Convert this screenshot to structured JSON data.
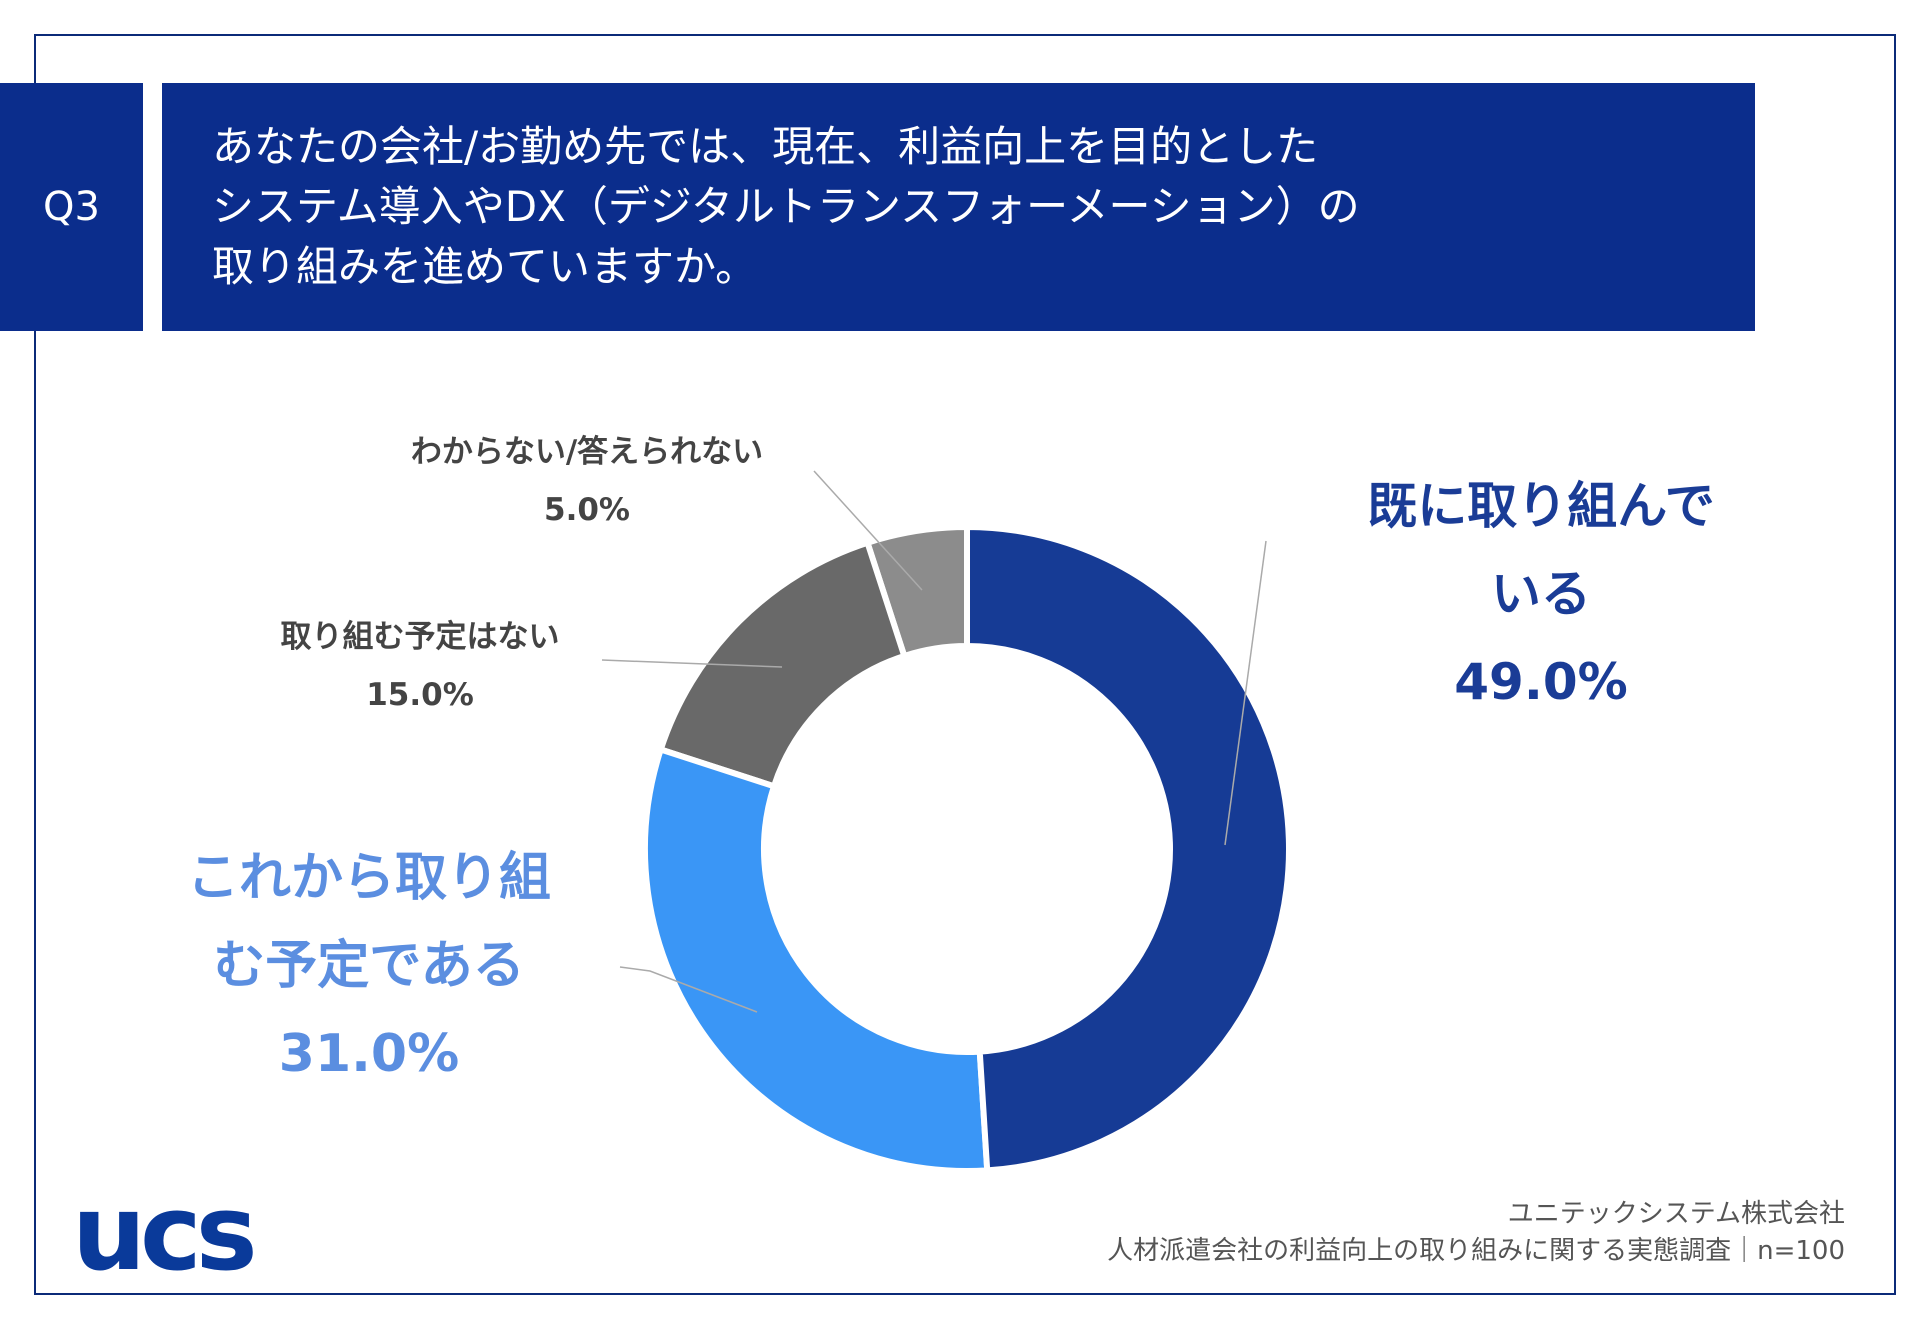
{
  "question_id": "Q3",
  "title_lines": [
    "あなたの会社/お勤め先では、現在、利益向上を目的とした",
    "システム導入やDX（デジタルトランスフォーメーション）の",
    "取り組みを進めていますか。"
  ],
  "chart_data": {
    "type": "donut",
    "categories": [
      "既に取り組んでいる",
      "これから取り組む予定である",
      "取り組む予定はない",
      "わからない/答えられない"
    ],
    "values": [
      49,
      31,
      15,
      5
    ],
    "value_labels": [
      "49.0%",
      "31.0%",
      "15.0%",
      "5.0%"
    ],
    "colors": [
      "#163b95",
      "#3a96f6",
      "#696969",
      "#8c8c8c"
    ]
  },
  "footer": {
    "company": "ユニテックシステム株式会社",
    "survey": "人材派遣会社の利益向上の取り組みに関する実態調査｜n=100",
    "logo": "ucs"
  }
}
